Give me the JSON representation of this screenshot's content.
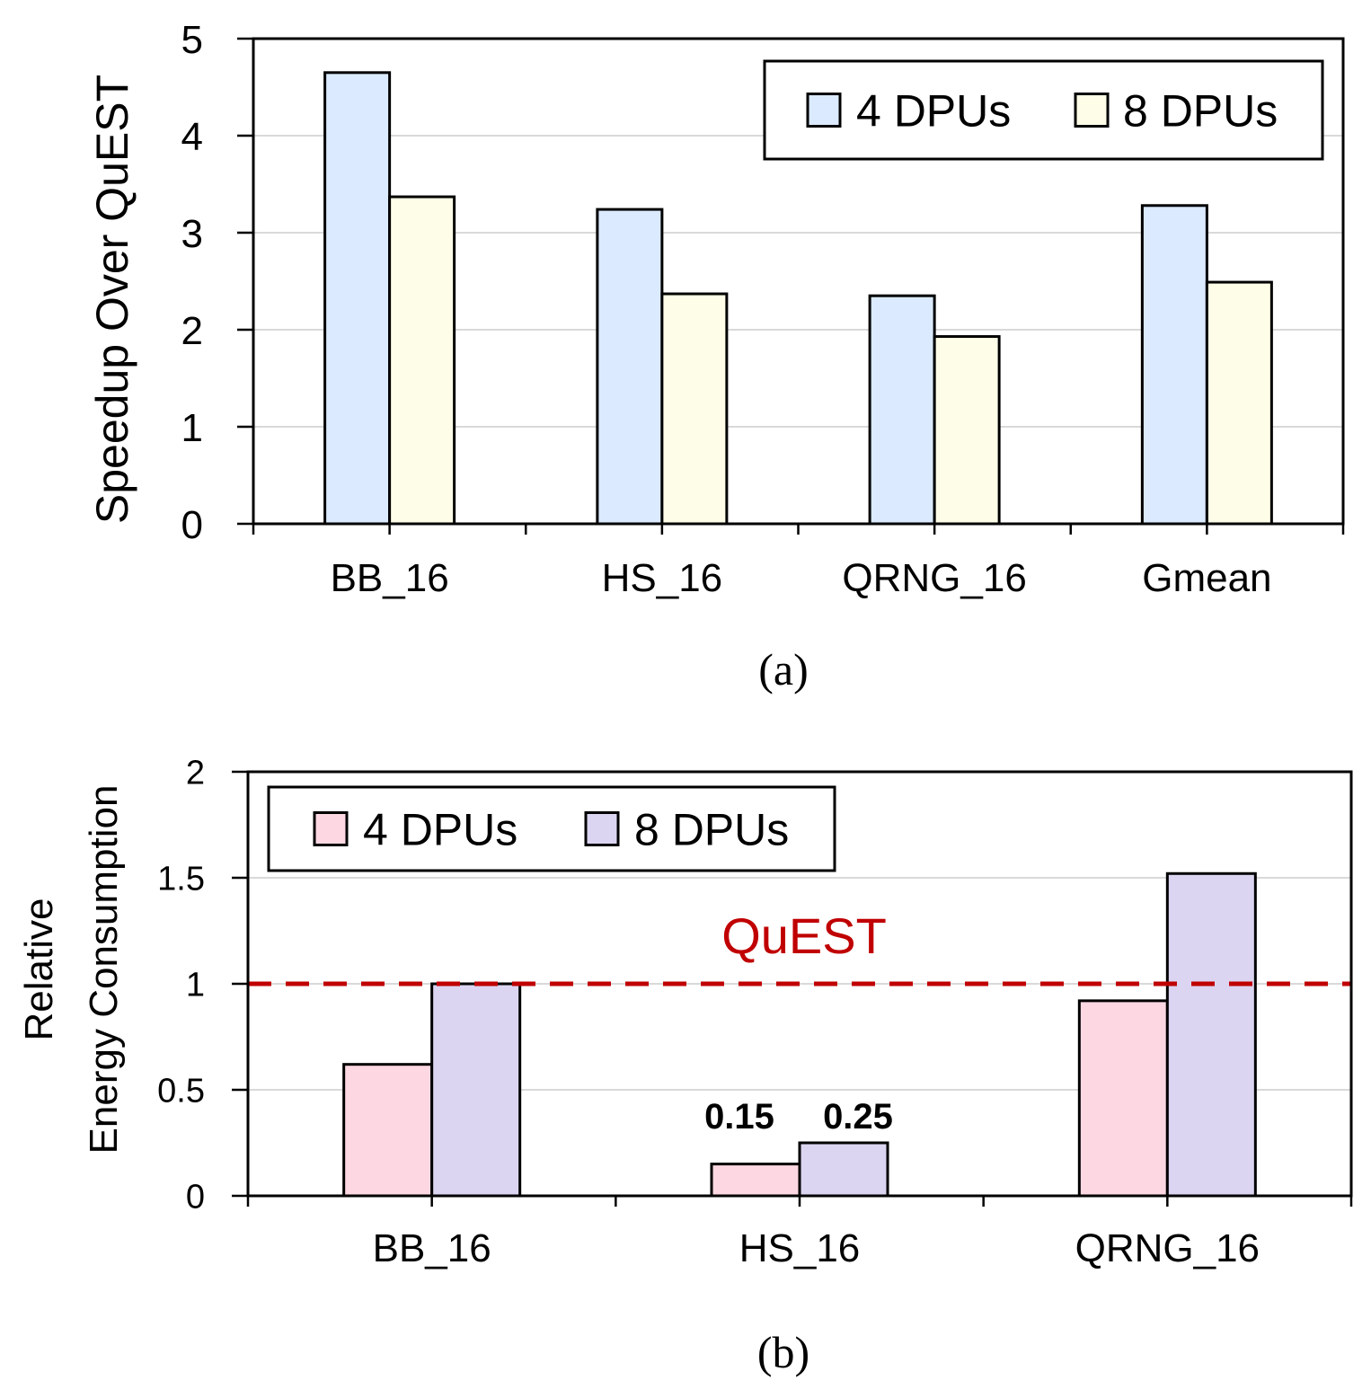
{
  "chart_data": [
    {
      "type": "bar",
      "title": "",
      "xlabel": "",
      "ylabel": "Speedup Over QuEST",
      "ylim": [
        0,
        5
      ],
      "yticks": [
        "0",
        "1",
        "2",
        "3",
        "4",
        "5"
      ],
      "grid": true,
      "legend": "top-right",
      "categories": [
        "BB_16",
        "HS_16",
        "QRNG_16",
        "Gmean"
      ],
      "series": [
        {
          "name": "4 DPUs",
          "values": [
            4.65,
            3.24,
            2.35,
            3.28
          ],
          "color": "#dbeafe"
        },
        {
          "name": "8 DPUs",
          "values": [
            3.37,
            2.37,
            1.93,
            2.49
          ],
          "color": "#fefee8"
        }
      ],
      "caption": "(a)"
    },
    {
      "type": "bar",
      "title": "",
      "xlabel": "",
      "ylabel": [
        "Relative",
        "Energy Consumption"
      ],
      "ylim": [
        0,
        2
      ],
      "yticks": [
        "0",
        "0.5",
        "1",
        "1.5",
        "2"
      ],
      "grid": true,
      "legend": "top-left",
      "categories": [
        "BB_16",
        "HS_16",
        "QRNG_16"
      ],
      "series": [
        {
          "name": "4 DPUs",
          "values": [
            0.62,
            0.15,
            0.92
          ],
          "color": "#fdd8e2"
        },
        {
          "name": "8 DPUs",
          "values": [
            1.0,
            0.25,
            1.52
          ],
          "color": "#dcd5f1"
        }
      ],
      "data_labels": [
        {
          "category": "HS_16",
          "series": "4 DPUs",
          "text": "0.15"
        },
        {
          "category": "HS_16",
          "series": "8 DPUs",
          "text": "0.25"
        }
      ],
      "reference_line": {
        "value": 1,
        "label": "QuEST",
        "color": "#c00000"
      },
      "caption": "(b)"
    }
  ]
}
